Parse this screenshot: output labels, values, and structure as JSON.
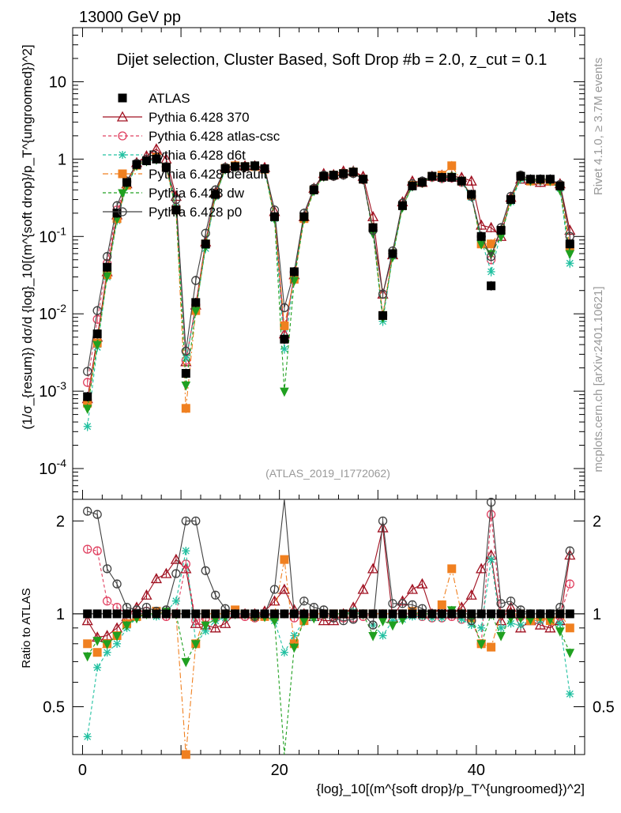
{
  "header": {
    "left": "13000 GeV pp",
    "right": "Jets"
  },
  "side": {
    "rivet": "Rivet 4.1.0, ≥ 3.7M events",
    "mcplots": "mcplots.cern.ch [arXiv:2401.10621]"
  },
  "chart_data": {
    "type": "scatter",
    "title": "Dijet selection, Cluster Based, Soft Drop #b = 2.0, z_cut = 0.1",
    "analysis_id": "(ATLAS_2019_I1772062)",
    "ylabel": "(1/σ_{resum}) dσ/d {log}_10[(m^{soft drop}/p_T^{ungroomed})^2]",
    "ratio_ylabel": "Ratio to ATLAS",
    "xlabel": "{log}_10[(m^{soft drop}/p_T^{ungroomed})^2]",
    "xlim": [
      -1,
      51
    ],
    "ylim": [
      4e-05,
      50
    ],
    "ratio_ylim": [
      0.35,
      2.35
    ],
    "x_ticks": [
      "0",
      "20",
      "40"
    ],
    "y_ticks": [
      "10^-4",
      "10^-3",
      "10^-2",
      "10^-1",
      "1",
      "10"
    ],
    "ratio_ticks": [
      "0.5",
      "1",
      "2"
    ],
    "x": [
      0.5,
      1.5,
      2.5,
      3.5,
      4.5,
      5.5,
      6.5,
      7.5,
      8.5,
      9.5,
      10.5,
      11.5,
      12.5,
      13.5,
      14.5,
      15.5,
      16.5,
      17.5,
      18.5,
      19.5,
      20.5,
      21.5,
      22.5,
      23.5,
      24.5,
      25.5,
      26.5,
      27.5,
      28.5,
      29.5,
      30.5,
      31.5,
      32.5,
      33.5,
      34.5,
      35.5,
      36.5,
      37.5,
      38.5,
      39.5,
      40.5,
      41.5,
      42.5,
      43.5,
      44.5,
      45.5,
      46.5,
      47.5,
      48.5,
      49.5
    ],
    "series": [
      {
        "name": "ATLAS",
        "color": "#000000",
        "marker": "square-filled",
        "dash": "none",
        "values": [
          0.00085,
          0.0055,
          0.04,
          0.2,
          0.5,
          0.85,
          0.95,
          1.0,
          0.78,
          0.22,
          0.0017,
          0.014,
          0.08,
          0.35,
          0.75,
          0.8,
          0.8,
          0.82,
          0.75,
          0.18,
          0.0047,
          0.035,
          0.18,
          0.4,
          0.6,
          0.62,
          0.65,
          0.68,
          0.55,
          0.13,
          0.0095,
          0.06,
          0.25,
          0.45,
          0.5,
          0.6,
          0.58,
          0.58,
          0.52,
          0.35,
          0.1,
          0.023,
          0.12,
          0.3,
          0.6,
          0.55,
          0.55,
          0.55,
          0.45,
          0.08
        ],
        "ratio": [
          1,
          1,
          1,
          1,
          1,
          1,
          1,
          1,
          1,
          1,
          1,
          1,
          1,
          1,
          1,
          1,
          1,
          1,
          1,
          1,
          1,
          1,
          1,
          1,
          1,
          1,
          1,
          1,
          1,
          1,
          1,
          1,
          1,
          1,
          1,
          1,
          1,
          1,
          1,
          1,
          1,
          1,
          1,
          1,
          1,
          1,
          1,
          1,
          1,
          1
        ]
      },
      {
        "name": "Pythia 6.428 370",
        "color": "#a01020",
        "marker": "triangle-open",
        "dash": "none",
        "values": [
          0.0008,
          0.005,
          0.035,
          0.19,
          0.48,
          0.9,
          1.1,
          1.35,
          1.0,
          0.33,
          0.0024,
          0.013,
          0.085,
          0.37,
          0.78,
          0.83,
          0.82,
          0.82,
          0.78,
          0.21,
          0.0055,
          0.032,
          0.18,
          0.42,
          0.65,
          0.63,
          0.7,
          0.7,
          0.6,
          0.18,
          0.018,
          0.058,
          0.28,
          0.52,
          0.5,
          0.6,
          0.62,
          0.6,
          0.58,
          0.52,
          0.14,
          0.13,
          0.1,
          0.32,
          0.55,
          0.53,
          0.5,
          0.52,
          0.48,
          0.12
        ],
        "ratio": [
          0.95,
          0.84,
          0.85,
          0.9,
          0.98,
          1.05,
          1.15,
          1.3,
          1.35,
          1.5,
          1.4,
          0.93,
          0.92,
          0.9,
          0.93,
          1.0,
          1.0,
          1.0,
          1.02,
          1.1,
          1.2,
          1.03,
          1.0,
          0.98,
          0.95,
          0.95,
          1.0,
          1.05,
          1.2,
          1.4,
          1.9,
          0.97,
          1.1,
          1.2,
          1.25,
          1.0,
          1.05,
          1.0,
          1.05,
          1.15,
          1.4,
          1.55,
          0.95,
          1.05,
          0.9,
          0.95,
          0.92,
          0.9,
          0.95,
          1.55
        ]
      },
      {
        "name": "Pythia 6.428 atlas-csc",
        "color": "#e04060",
        "marker": "circle-open",
        "dash": "dash",
        "values": [
          0.0013,
          0.0085,
          0.045,
          0.22,
          0.5,
          0.85,
          0.98,
          1.02,
          0.8,
          0.24,
          0.0025,
          0.013,
          0.078,
          0.34,
          0.75,
          0.8,
          0.79,
          0.8,
          0.75,
          0.18,
          0.0047,
          0.034,
          0.18,
          0.4,
          0.6,
          0.6,
          0.63,
          0.66,
          0.54,
          0.13,
          0.0095,
          0.06,
          0.25,
          0.45,
          0.49,
          0.58,
          0.56,
          0.57,
          0.5,
          0.33,
          0.1,
          0.05,
          0.12,
          0.3,
          0.59,
          0.53,
          0.53,
          0.53,
          0.44,
          0.1
        ],
        "ratio": [
          1.62,
          1.6,
          1.1,
          1.05,
          1.0,
          1.0,
          1.02,
          1.0,
          0.98,
          1.0,
          1.45,
          0.95,
          0.97,
          0.97,
          1.0,
          1.0,
          0.98,
          0.97,
          1.0,
          0.97,
          1.0,
          0.97,
          1.0,
          1.0,
          1.0,
          0.97,
          0.97,
          0.97,
          0.98,
          1.0,
          1.0,
          1.0,
          1.0,
          1.0,
          0.98,
          0.97,
          0.97,
          0.98,
          0.96,
          0.95,
          0.8,
          2.1,
          1.0,
          1.0,
          0.98,
          0.96,
          0.96,
          0.96,
          0.98,
          1.25
        ]
      },
      {
        "name": "Pythia 6.428 d6t",
        "color": "#20c0a0",
        "marker": "star",
        "dash": "dash",
        "values": [
          0.00035,
          0.0037,
          0.03,
          0.16,
          0.45,
          0.82,
          0.95,
          0.98,
          0.8,
          0.24,
          0.0027,
          0.011,
          0.07,
          0.33,
          0.73,
          0.8,
          0.8,
          0.8,
          0.74,
          0.17,
          0.0035,
          0.03,
          0.17,
          0.39,
          0.6,
          0.62,
          0.65,
          0.7,
          0.55,
          0.12,
          0.008,
          0.056,
          0.24,
          0.44,
          0.49,
          0.58,
          0.56,
          0.58,
          0.5,
          0.32,
          0.09,
          0.035,
          0.11,
          0.28,
          0.55,
          0.52,
          0.52,
          0.52,
          0.42,
          0.045
        ],
        "ratio": [
          0.4,
          0.67,
          0.75,
          0.8,
          0.9,
          0.97,
          1.0,
          0.98,
          1.02,
          1.1,
          1.6,
          0.8,
          0.88,
          0.95,
          0.97,
          1.0,
          1.0,
          0.98,
          0.98,
          0.95,
          0.75,
          0.85,
          0.95,
          0.97,
          1.0,
          1.0,
          1.0,
          1.02,
          1.0,
          0.92,
          0.85,
          0.95,
          0.96,
          0.98,
          0.98,
          0.97,
          0.97,
          1.0,
          0.96,
          0.92,
          0.9,
          1.5,
          0.9,
          0.93,
          0.92,
          0.95,
          0.95,
          0.95,
          0.93,
          0.55
        ]
      },
      {
        "name": "Pythia 6.428 default",
        "color": "#f08020",
        "marker": "square-filled",
        "dash": "dashdot",
        "values": [
          0.0007,
          0.0042,
          0.032,
          0.17,
          0.46,
          0.83,
          0.95,
          1.05,
          0.78,
          0.22,
          0.0006,
          0.011,
          0.08,
          0.35,
          0.76,
          0.82,
          0.8,
          0.8,
          0.74,
          0.18,
          0.007,
          0.028,
          0.17,
          0.4,
          0.6,
          0.62,
          0.65,
          0.68,
          0.55,
          0.13,
          0.0095,
          0.06,
          0.25,
          0.46,
          0.5,
          0.6,
          0.62,
          0.82,
          0.52,
          0.34,
          0.08,
          0.08,
          0.12,
          0.3,
          0.6,
          0.52,
          0.54,
          0.52,
          0.45,
          0.075
        ],
        "ratio": [
          0.8,
          0.75,
          0.8,
          0.85,
          0.93,
          0.98,
          1.0,
          1.02,
          1.0,
          1.0,
          0.35,
          0.8,
          1.0,
          1.0,
          1.0,
          1.03,
          1.0,
          0.98,
          0.98,
          1.0,
          1.5,
          0.8,
          0.95,
          1.0,
          1.0,
          1.0,
          1.0,
          1.0,
          1.0,
          1.0,
          1.0,
          1.0,
          1.0,
          1.02,
          1.0,
          1.0,
          1.07,
          1.4,
          1.0,
          0.97,
          0.8,
          0.78,
          1.0,
          1.0,
          1.0,
          0.95,
          0.98,
          0.95,
          1.0,
          0.9
        ]
      },
      {
        "name": "Pythia 6.428 dw",
        "color": "#20a020",
        "marker": "triangle-down-filled",
        "dash": "dash",
        "values": [
          0.0006,
          0.004,
          0.031,
          0.17,
          0.46,
          0.83,
          0.95,
          1.0,
          0.8,
          0.22,
          0.0012,
          0.011,
          0.075,
          0.34,
          0.75,
          0.8,
          0.8,
          0.8,
          0.74,
          0.17,
          0.001,
          0.027,
          0.17,
          0.39,
          0.6,
          0.62,
          0.65,
          0.68,
          0.55,
          0.11,
          0.009,
          0.055,
          0.24,
          0.45,
          0.5,
          0.6,
          0.58,
          0.6,
          0.52,
          0.34,
          0.08,
          0.06,
          0.1,
          0.29,
          0.58,
          0.53,
          0.54,
          0.53,
          0.4,
          0.06
        ],
        "ratio": [
          0.73,
          0.82,
          0.8,
          0.85,
          0.92,
          0.97,
          1.0,
          1.0,
          1.02,
          1.0,
          0.7,
          0.8,
          0.92,
          0.96,
          0.98,
          1.0,
          1.0,
          0.98,
          0.98,
          0.95,
          0.2,
          0.78,
          0.95,
          0.97,
          1.0,
          1.0,
          1.0,
          1.0,
          1.0,
          0.85,
          0.95,
          0.92,
          0.96,
          1.0,
          1.0,
          1.0,
          1.0,
          1.03,
          1.0,
          0.97,
          0.8,
          1.0,
          0.85,
          0.97,
          0.97,
          0.96,
          0.98,
          0.96,
          0.88,
          0.75
        ]
      },
      {
        "name": "Pythia 6.428 p0",
        "color": "#404040",
        "marker": "circle-open",
        "dash": "none",
        "values": [
          0.0018,
          0.011,
          0.055,
          0.25,
          0.52,
          0.88,
          1.0,
          1.02,
          0.8,
          0.3,
          0.0033,
          0.027,
          0.11,
          0.4,
          0.78,
          0.8,
          0.8,
          0.8,
          0.75,
          0.22,
          0.012,
          0.035,
          0.2,
          0.42,
          0.62,
          0.6,
          0.62,
          0.65,
          0.55,
          0.12,
          0.018,
          0.065,
          0.27,
          0.48,
          0.52,
          0.6,
          0.58,
          0.58,
          0.52,
          0.33,
          0.1,
          0.055,
          0.13,
          0.33,
          0.62,
          0.55,
          0.55,
          0.55,
          0.47,
          0.1
        ],
        "ratio": [
          2.15,
          2.1,
          1.4,
          1.25,
          1.05,
          1.03,
          1.05,
          1.02,
          1.03,
          1.35,
          2.0,
          2.0,
          1.38,
          1.15,
          1.04,
          1.0,
          1.0,
          0.98,
          1.0,
          1.2,
          2.5,
          1.0,
          1.1,
          1.05,
          1.03,
          0.97,
          0.95,
          0.96,
          1.0,
          0.92,
          2.0,
          1.08,
          1.08,
          1.07,
          1.04,
          1.0,
          1.0,
          1.0,
          1.0,
          0.95,
          1.0,
          2.3,
          1.08,
          1.1,
          1.03,
          1.0,
          1.0,
          1.0,
          1.05,
          1.6
        ]
      }
    ]
  }
}
